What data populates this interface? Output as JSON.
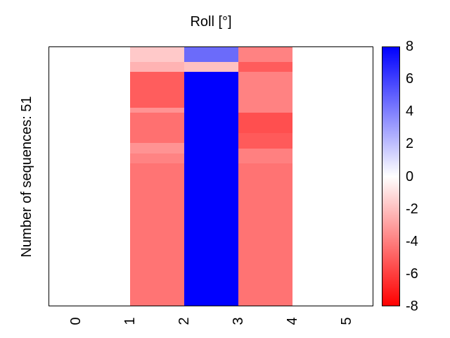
{
  "figure": {
    "title": "Roll [°]",
    "y_axis_label": "Number of sequences: 51"
  },
  "x_axis": {
    "tick_labels": [
      "0",
      "1",
      "2",
      "3",
      "4",
      "5"
    ]
  },
  "colorbar": {
    "tick_labels": [
      "8",
      "6",
      "4",
      "2",
      "0",
      "-2",
      "-4",
      "-6",
      "-8"
    ],
    "gradient_top": "#0000ff",
    "gradient_middle": "#ffffff",
    "gradient_bottom": "#ff0000"
  },
  "chart_data": {
    "type": "heatmap",
    "title": "Roll [°]",
    "ylabel": "Number of sequences: 51",
    "num_sequences": 51,
    "x_ticks": [
      0,
      1,
      2,
      3,
      4,
      5
    ],
    "x_range": [
      -0.5,
      5.5
    ],
    "value_range": [
      -8,
      8
    ],
    "colorbar_tick_values": [
      8,
      6,
      4,
      2,
      0,
      -2,
      -4,
      -6,
      -8
    ],
    "columns": [
      {
        "x_from": 1,
        "x_to": 2,
        "bands": [
          {
            "row_from": 0,
            "row_to": 3,
            "value": -1.7,
            "color": "#ffc9c9"
          },
          {
            "row_from": 3,
            "row_to": 5,
            "value": -2.4,
            "color": "#ffb3b3"
          },
          {
            "row_from": 5,
            "row_to": 12,
            "value": -5.1,
            "color": "#ff5d5d"
          },
          {
            "row_from": 12,
            "row_to": 13,
            "value": -3.4,
            "color": "#ff9393"
          },
          {
            "row_from": 13,
            "row_to": 19,
            "value": -4.5,
            "color": "#ff7070"
          },
          {
            "row_from": 19,
            "row_to": 21,
            "value": -3.4,
            "color": "#ff9393"
          },
          {
            "row_from": 21,
            "row_to": 23,
            "value": -3.9,
            "color": "#ff8383"
          },
          {
            "row_from": 23,
            "row_to": 51,
            "value": -4.4,
            "color": "#ff7474"
          }
        ]
      },
      {
        "x_from": 2,
        "x_to": 3,
        "bands": [
          {
            "row_from": 0,
            "row_to": 3,
            "value": 4.6,
            "color": "#6b6bfa"
          },
          {
            "row_from": 3,
            "row_to": 5,
            "value": -1.9,
            "color": "#ffc1c1"
          },
          {
            "row_from": 5,
            "row_to": 51,
            "value": 8.0,
            "color": "#0000ff"
          }
        ]
      },
      {
        "x_from": 3,
        "x_to": 4,
        "bands": [
          {
            "row_from": 0,
            "row_to": 3,
            "value": -3.9,
            "color": "#ff8282"
          },
          {
            "row_from": 3,
            "row_to": 5,
            "value": -5.1,
            "color": "#ff5c5c"
          },
          {
            "row_from": 5,
            "row_to": 13,
            "value": -3.9,
            "color": "#ff8282"
          },
          {
            "row_from": 13,
            "row_to": 17,
            "value": -5.5,
            "color": "#ff4f4f"
          },
          {
            "row_from": 17,
            "row_to": 20,
            "value": -5.2,
            "color": "#ff5a5a"
          },
          {
            "row_from": 20,
            "row_to": 23,
            "value": -4.0,
            "color": "#ff8080"
          },
          {
            "row_from": 23,
            "row_to": 51,
            "value": -4.4,
            "color": "#ff7373"
          }
        ]
      }
    ]
  }
}
